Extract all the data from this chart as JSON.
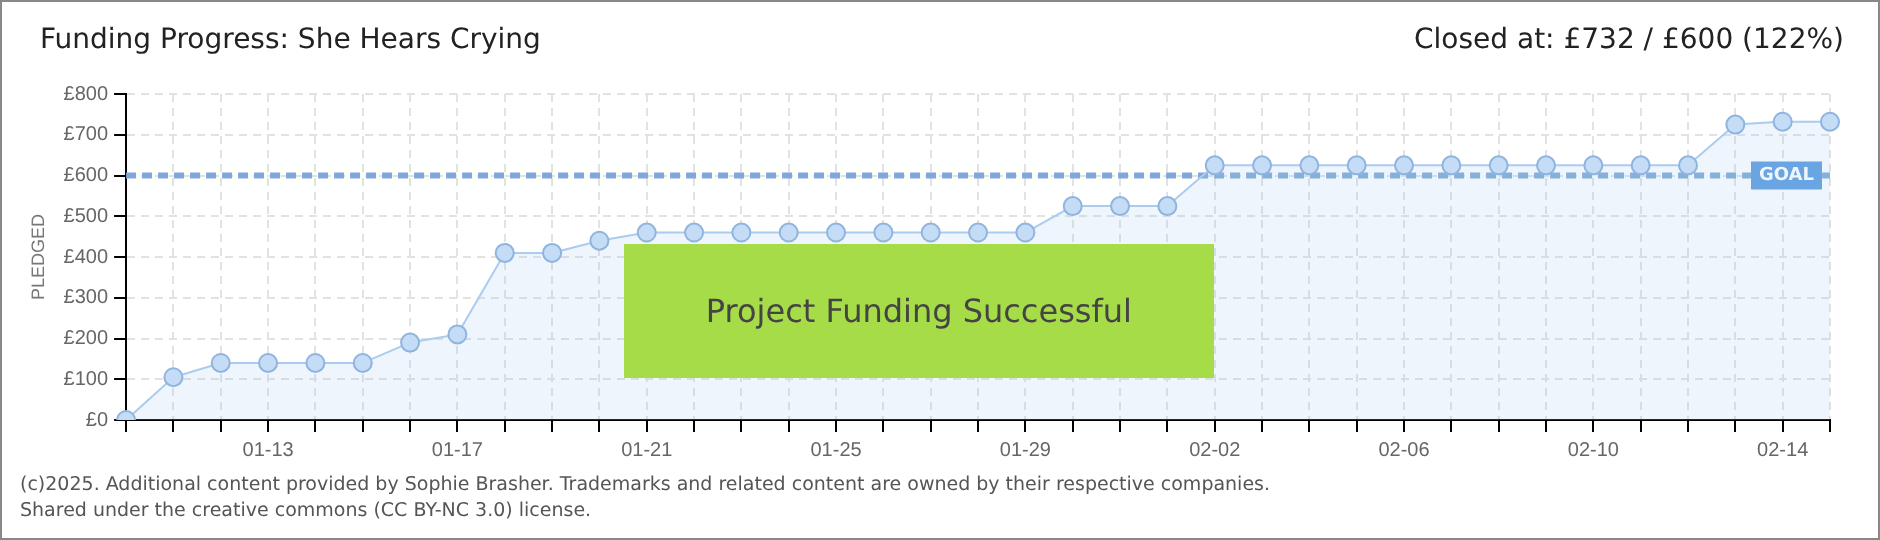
{
  "chart_data": {
    "type": "area",
    "title": "Funding Progress: She Hears Crying",
    "subtitle": "Closed at:  £732 /  £600 (122%)",
    "ylabel": "PLEDGED",
    "categories": [
      null,
      null,
      null,
      "01-13",
      null,
      null,
      null,
      "01-17",
      null,
      null,
      null,
      "01-21",
      null,
      null,
      null,
      "01-25",
      null,
      null,
      null,
      "01-29",
      null,
      null,
      null,
      "02-02",
      null,
      null,
      null,
      "02-06",
      null,
      null,
      null,
      "02-10",
      null,
      null,
      null,
      "02-14",
      null
    ],
    "series": [
      {
        "color": "#a9ccf0",
        "values": [
          0,
          105,
          140,
          140,
          140,
          140,
          190,
          210,
          410,
          410,
          440,
          460,
          460,
          460,
          460,
          460,
          460,
          460,
          460,
          460,
          525,
          525,
          525,
          625,
          625,
          625,
          625,
          625,
          625,
          625,
          625,
          625,
          625,
          625,
          725,
          732,
          732
        ]
      }
    ],
    "ylim": [
      0,
      800
    ],
    "yticks": [
      {
        "value": 0,
        "label": "£0"
      },
      {
        "value": 100,
        "label": "£100"
      },
      {
        "value": 200,
        "label": "£200"
      },
      {
        "value": 300,
        "label": "£300"
      },
      {
        "value": 400,
        "label": "£400"
      },
      {
        "value": 500,
        "label": "£500"
      },
      {
        "value": 600,
        "label": "£600"
      },
      {
        "value": 700,
        "label": "£700"
      },
      {
        "value": 800,
        "label": "£800"
      }
    ],
    "ref_lines": [
      {
        "axis": "y",
        "value": 600,
        "label": "GOAL",
        "color": "#7fa8d8",
        "line_style": "dashed"
      }
    ],
    "annotations": [
      "Project Funding Successful",
      "(c)2025. Additional content provided by Sophie Brasher. Trademarks and related content are owned by their respective companies.",
      "Shared under the creative commons (CC BY-NC 3.0) license."
    ],
    "grid": true,
    "legend": false,
    "marker": "circle",
    "line_style": "solid"
  }
}
